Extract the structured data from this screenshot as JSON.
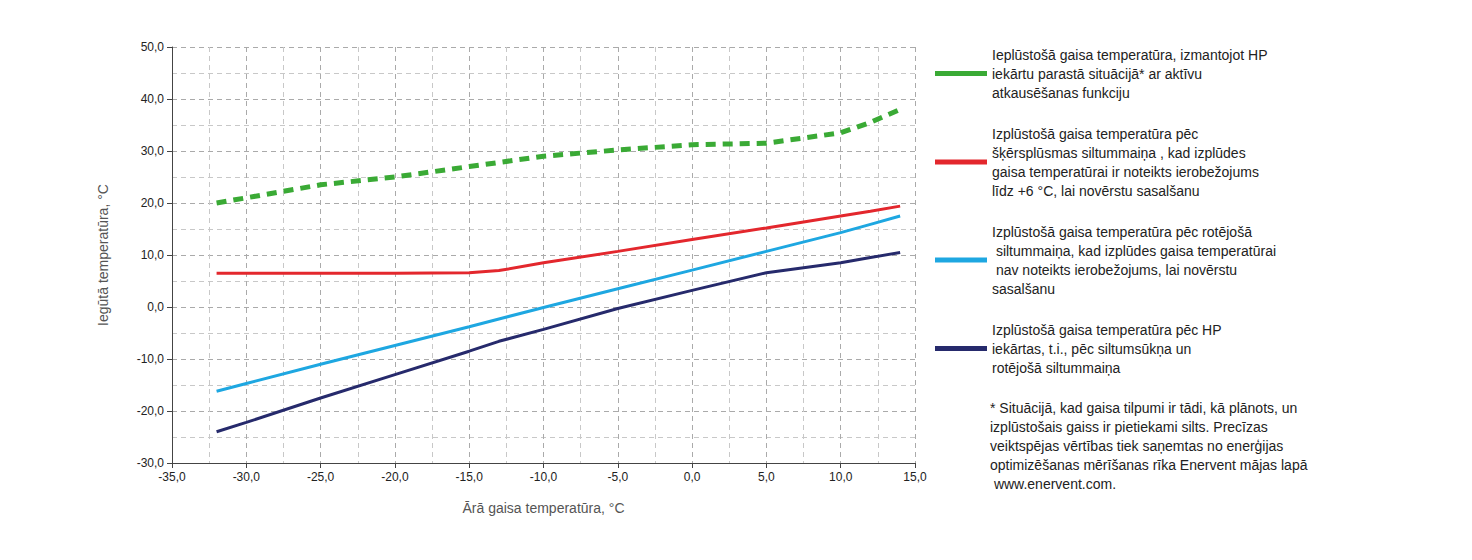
{
  "chart_data": {
    "type": "line",
    "x_label": "Ārā gaisa temperatūra, °C",
    "y_label": "Iegūtā temperatūra, °C",
    "x": [
      -32,
      -30,
      -25,
      -20,
      -15,
      -13,
      -10,
      -5,
      0,
      5,
      10,
      12,
      14
    ],
    "series": [
      {
        "name": "Ieplūstošā gaisa temperatūra, izmantojot HP iekārtu parastā situācijā* ar aktīvu atkausēšanas funkciju",
        "color": "#3aaa35",
        "line_style": "dashed",
        "values": [
          20,
          21,
          23.5,
          25,
          27,
          27.8,
          29,
          30.2,
          31.2,
          31.5,
          33.5,
          35.5,
          38
        ]
      },
      {
        "name": "Izplūstošā gaisa temperatūra pēc šķērsplūsmas siltummaiņa , kad izplūdes gaisa temperatūrai ir noteikts ierobežojums līdz +6 °C, lai novērstu sasalšanu",
        "color": "#e3272d",
        "line_style": "solid",
        "values": [
          6.5,
          6.5,
          6.5,
          6.5,
          6.6,
          7,
          8.5,
          10.7,
          13,
          15.2,
          17.5,
          18.4,
          19.4
        ]
      },
      {
        "name": "Izplūstošā gaisa temperatūra pēc rotējošā siltummaiņa, kad izplūdes gaisa temperatūrai nav noteikts ierobežojums, lai novērstu sasalšanu",
        "color": "#1ea7e1",
        "line_style": "solid",
        "values": [
          -16.2,
          -14.7,
          -11,
          -7.4,
          -3.8,
          -2.3,
          -0.1,
          3.5,
          7.1,
          10.7,
          14.3,
          15.9,
          17.5
        ]
      },
      {
        "name": "Izplūstošā gaisa temperatūra pēc HP iekārtas, t.i., pēc siltumsūkņa un rotējošā siltummaiņa",
        "color": "#262a6c",
        "line_style": "solid",
        "values": [
          -24,
          -22.2,
          -17.5,
          -13,
          -8.5,
          -6.6,
          -4.3,
          -0.3,
          3.2,
          6.6,
          8.5,
          9.5,
          10.5
        ]
      }
    ],
    "xlim": [
      -35,
      15
    ],
    "xticks": [
      {
        "value": -35,
        "label": "-35,0"
      },
      {
        "value": -30,
        "label": "-30,0"
      },
      {
        "value": -25,
        "label": "-25,0"
      },
      {
        "value": -20,
        "label": "-20,0"
      },
      {
        "value": -15,
        "label": "-15,0"
      },
      {
        "value": -10,
        "label": "-10,0"
      },
      {
        "value": -5,
        "label": "-5,0"
      },
      {
        "value": 0,
        "label": "0,0"
      },
      {
        "value": 5,
        "label": "5,0"
      },
      {
        "value": 10,
        "label": "10,0"
      },
      {
        "value": 15,
        "label": "15,0"
      }
    ],
    "ylim": [
      -30,
      50
    ],
    "yticks": [
      {
        "value": -30,
        "label": "-30,0"
      },
      {
        "value": -20,
        "label": "-20,0"
      },
      {
        "value": -10,
        "label": "-10,0"
      },
      {
        "value": 0,
        "label": "0,0"
      },
      {
        "value": 10,
        "label": "10,0"
      },
      {
        "value": 20,
        "label": "20,0"
      },
      {
        "value": 30,
        "label": "30,0"
      },
      {
        "value": 40,
        "label": "40,0"
      },
      {
        "value": 50,
        "label": "50,0"
      }
    ],
    "grid": true,
    "legend": "right",
    "marker": "none",
    "annotations": [
      "* Situācijā, kad gaisa tilpumi ir tādi, kā plānots, un izplūstošais gaiss ir pietiekami silts. Precīzas veiktspējas vērtības tiek saņemtas no enerģijas optimizēšanas mērīšanas rīka Enervent mājas lapā www.enervent.com."
    ]
  }
}
